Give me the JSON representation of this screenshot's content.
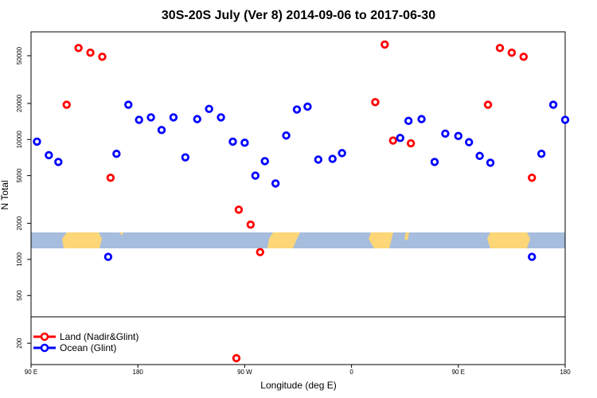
{
  "chart_data": {
    "type": "scatter",
    "title": "30S-20S July (Ver 8)   2014-09-06 to 2017-06-30",
    "xlabel": "Longitude (deg E)",
    "ylabel": "N Total",
    "x_scale": "longitude wrapped, 90E to 180 (continuing past 180 through 90W, 0, 90E, 180)",
    "y_scale": "log",
    "ylim": [
      140,
      80000
    ],
    "x_ticks": [
      {
        "label": "90 E"
      },
      {
        "label": "180"
      },
      {
        "label": "90 W"
      },
      {
        "label": "0"
      },
      {
        "label": "90 E"
      },
      {
        "label": "180"
      }
    ],
    "y_ticks": [
      {
        "value": 200,
        "label": "200"
      },
      {
        "value": 500,
        "label": "500"
      },
      {
        "value": 1000,
        "label": "1000"
      },
      {
        "value": 2000,
        "label": "2000"
      },
      {
        "value": 5000,
        "label": "5000"
      },
      {
        "value": 10000,
        "label": "10000"
      },
      {
        "value": 20000,
        "label": "20000"
      },
      {
        "value": 50000,
        "label": "50000"
      }
    ],
    "grid": false,
    "legend_position": "bottom-left",
    "series": [
      {
        "name": "Land (Nadir&Glint)",
        "color": "#ff0000",
        "points": [
          {
            "x": 120,
            "y": 19500
          },
          {
            "x": 130,
            "y": 58000
          },
          {
            "x": 140,
            "y": 53000
          },
          {
            "x": 150,
            "y": 49000
          },
          {
            "x": 157,
            "y": 4800
          },
          {
            "x": 265,
            "y": 2600
          },
          {
            "x": 275,
            "y": 1950
          },
          {
            "x": 283,
            "y": 1150
          },
          {
            "x": 380,
            "y": 20500
          },
          {
            "x": 388,
            "y": 62000
          },
          {
            "x": 395,
            "y": 9800
          },
          {
            "x": 410,
            "y": 9300
          },
          {
            "x": 475,
            "y": 19500
          },
          {
            "x": 485,
            "y": 58000
          },
          {
            "x": 495,
            "y": 53000
          },
          {
            "x": 505,
            "y": 49000
          },
          {
            "x": 512,
            "y": 4800
          },
          {
            "x": 263,
            "y": 150
          }
        ]
      },
      {
        "name": "Ocean (Glint)",
        "color": "#0000ff",
        "points": [
          {
            "x": 95,
            "y": 9600
          },
          {
            "x": 105,
            "y": 7400
          },
          {
            "x": 113,
            "y": 6500
          },
          {
            "x": 155,
            "y": 1050
          },
          {
            "x": 162,
            "y": 7600
          },
          {
            "x": 172,
            "y": 19500
          },
          {
            "x": 181,
            "y": 14600
          },
          {
            "x": 191,
            "y": 15300
          },
          {
            "x": 200,
            "y": 12000
          },
          {
            "x": 210,
            "y": 15300
          },
          {
            "x": 220,
            "y": 7100
          },
          {
            "x": 230,
            "y": 14800
          },
          {
            "x": 240,
            "y": 18000
          },
          {
            "x": 250,
            "y": 15300
          },
          {
            "x": 260,
            "y": 9600
          },
          {
            "x": 270,
            "y": 9400
          },
          {
            "x": 279,
            "y": 5000
          },
          {
            "x": 287,
            "y": 6600
          },
          {
            "x": 296,
            "y": 4300
          },
          {
            "x": 305,
            "y": 10800
          },
          {
            "x": 314,
            "y": 17800
          },
          {
            "x": 323,
            "y": 18800
          },
          {
            "x": 332,
            "y": 6800
          },
          {
            "x": 344,
            "y": 6900
          },
          {
            "x": 352,
            "y": 7700
          },
          {
            "x": 401,
            "y": 10300
          },
          {
            "x": 408,
            "y": 14300
          },
          {
            "x": 419,
            "y": 14800
          },
          {
            "x": 430,
            "y": 6500
          },
          {
            "x": 439,
            "y": 11200
          },
          {
            "x": 450,
            "y": 10700
          },
          {
            "x": 459,
            "y": 9500
          },
          {
            "x": 468,
            "y": 7300
          },
          {
            "x": 477,
            "y": 6400
          },
          {
            "x": 512,
            "y": 1050
          },
          {
            "x": 520,
            "y": 7600
          },
          {
            "x": 530,
            "y": 19500
          },
          {
            "x": 540,
            "y": 14600
          }
        ]
      }
    ]
  },
  "colors": {
    "ocean_band": "#a7bddd",
    "land_band": "#fcd677",
    "land": "#ff0000",
    "ocean": "#0000ff"
  }
}
